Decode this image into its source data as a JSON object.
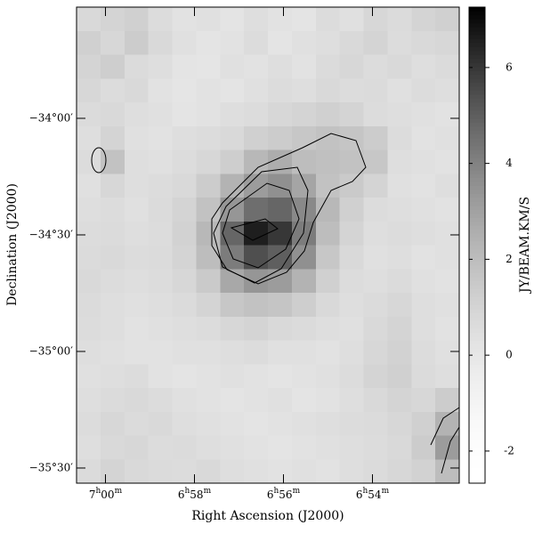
{
  "chart_data": {
    "type": "image",
    "x_label": "Right Ascension (J2000)",
    "y_label": "Declination (J2000)",
    "colorbar_label": "JY/BEAM.KM/S",
    "xlim": [
      420.65,
      412.05
    ],
    "xticks": [
      {
        "value": 420,
        "label": "7h00m"
      },
      {
        "value": 418,
        "label": "6h58m"
      },
      {
        "value": 416,
        "label": "6h56m"
      },
      {
        "value": 414,
        "label": "6h54m"
      }
    ],
    "ylim": [
      -33.523,
      -35.565
    ],
    "yticks": [
      {
        "value": -34,
        "label": "−34°00′"
      },
      {
        "value": -34.5,
        "label": "−34°30′"
      },
      {
        "value": -35,
        "label": "−35°00′"
      },
      {
        "value": -35.5,
        "label": "−35°30′"
      }
    ],
    "clim": [
      -2.67,
      7.26
    ],
    "cticks": [
      -2,
      0,
      2,
      4,
      6
    ],
    "z": [
      [
        0.8,
        1.0,
        1.2,
        0.6,
        0.3,
        0.4,
        0.2,
        0.5,
        0.3,
        0.2,
        0.6,
        0.4,
        0.9,
        0.7,
        1.0,
        1.2
      ],
      [
        1.2,
        0.9,
        1.4,
        0.8,
        0.4,
        0.2,
        0.3,
        0.6,
        0.2,
        0.4,
        0.5,
        0.8,
        1.0,
        0.6,
        0.8,
        0.9
      ],
      [
        1.0,
        1.3,
        0.7,
        0.5,
        0.2,
        0.1,
        0.4,
        0.3,
        0.5,
        0.3,
        0.7,
        0.9,
        0.6,
        0.8,
        0.5,
        0.7
      ],
      [
        0.9,
        0.6,
        0.8,
        0.3,
        0.1,
        0.3,
        0.2,
        0.4,
        0.6,
        0.5,
        0.8,
        0.6,
        0.7,
        0.4,
        0.6,
        0.5
      ],
      [
        0.7,
        0.8,
        0.5,
        0.4,
        0.2,
        0.3,
        0.5,
        0.6,
        0.9,
        1.0,
        1.2,
        1.0,
        0.6,
        0.5,
        0.4,
        0.3
      ],
      [
        0.5,
        1.0,
        0.4,
        0.3,
        0.5,
        0.6,
        0.8,
        1.2,
        1.4,
        1.6,
        1.8,
        1.7,
        1.4,
        0.6,
        0.3,
        0.4
      ],
      [
        0.6,
        1.8,
        0.5,
        0.4,
        0.6,
        0.9,
        1.3,
        2.2,
        2.6,
        2.0,
        1.9,
        1.8,
        1.6,
        0.5,
        0.4,
        0.3
      ],
      [
        0.4,
        0.9,
        0.5,
        0.6,
        0.8,
        1.4,
        2.4,
        3.2,
        3.6,
        2.9,
        1.8,
        1.5,
        1.0,
        0.4,
        0.3,
        0.5
      ],
      [
        0.5,
        0.6,
        0.4,
        0.7,
        1.0,
        1.8,
        3.4,
        4.6,
        4.8,
        3.8,
        2.2,
        1.2,
        0.6,
        0.5,
        0.4,
        0.3
      ],
      [
        0.6,
        0.7,
        0.5,
        0.6,
        1.1,
        2.2,
        4.8,
        6.6,
        6.0,
        4.2,
        2.0,
        1.0,
        0.5,
        0.6,
        0.5,
        0.4
      ],
      [
        0.7,
        0.8,
        0.6,
        0.7,
        1.0,
        2.0,
        4.2,
        5.4,
        5.0,
        3.6,
        1.6,
        0.8,
        0.4,
        0.5,
        0.3,
        0.4
      ],
      [
        0.8,
        0.6,
        0.5,
        0.6,
        0.9,
        1.5,
        2.8,
        3.4,
        3.2,
        2.4,
        1.2,
        0.6,
        0.5,
        0.7,
        0.4,
        0.3
      ],
      [
        0.7,
        0.5,
        0.4,
        0.5,
        0.7,
        1.0,
        1.6,
        1.8,
        1.7,
        1.3,
        0.8,
        0.5,
        0.7,
        0.9,
        0.5,
        0.4
      ],
      [
        0.6,
        0.5,
        0.3,
        0.4,
        0.5,
        0.6,
        0.9,
        1.0,
        0.8,
        0.7,
        0.5,
        0.4,
        0.8,
        1.0,
        0.5,
        0.3
      ],
      [
        0.5,
        0.4,
        0.3,
        0.3,
        0.4,
        0.4,
        0.5,
        0.6,
        0.4,
        0.4,
        0.3,
        0.5,
        0.9,
        1.1,
        0.6,
        0.4
      ],
      [
        0.4,
        0.5,
        0.6,
        0.3,
        0.2,
        0.3,
        0.4,
        0.3,
        0.2,
        0.3,
        0.4,
        0.6,
        1.0,
        1.2,
        0.7,
        0.5
      ],
      [
        0.5,
        0.7,
        0.8,
        0.6,
        0.4,
        0.3,
        0.2,
        0.3,
        0.4,
        0.2,
        0.3,
        0.5,
        0.8,
        1.0,
        0.9,
        1.4
      ],
      [
        0.6,
        0.9,
        0.7,
        0.8,
        0.5,
        0.4,
        0.3,
        0.2,
        0.3,
        0.4,
        0.5,
        0.6,
        0.7,
        0.9,
        1.2,
        2.4
      ],
      [
        0.5,
        0.8,
        0.9,
        0.6,
        0.7,
        0.5,
        0.4,
        0.3,
        0.2,
        0.3,
        0.4,
        0.5,
        0.6,
        0.8,
        1.4,
        3.2
      ],
      [
        0.7,
        1.0,
        0.8,
        0.7,
        0.6,
        0.8,
        0.5,
        0.4,
        0.3,
        0.4,
        0.3,
        0.5,
        0.7,
        0.9,
        1.1,
        2.0
      ]
    ]
  }
}
